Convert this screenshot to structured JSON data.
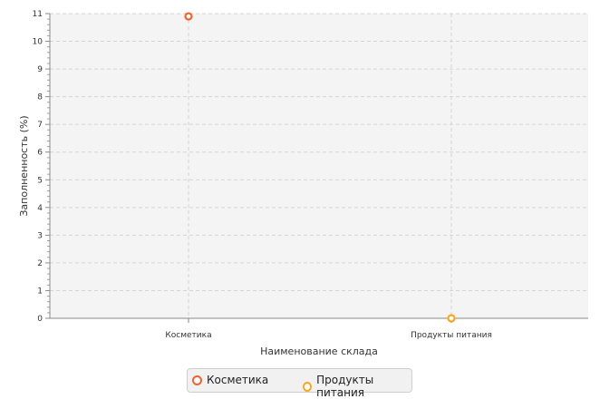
{
  "chart_data": {
    "type": "scatter",
    "title": "",
    "xlabel": "Наименование склада",
    "ylabel": "Заполненность (%)",
    "categories": [
      "Косметика",
      "Продукты питания"
    ],
    "ylim": [
      0,
      11
    ],
    "yticks": [
      0,
      1,
      2,
      3,
      4,
      5,
      6,
      7,
      8,
      9,
      10,
      11
    ],
    "grid": true,
    "legend_position": "bottom",
    "series": [
      {
        "name": "Косметика",
        "color": "#f3622d",
        "points": [
          {
            "x": "Косметика",
            "y": 10.9
          }
        ]
      },
      {
        "name": "Продукты питания",
        "color": "#fba71b",
        "points": [
          {
            "x": "Продукты питания",
            "y": 0
          }
        ]
      }
    ]
  },
  "legend": {
    "items": [
      {
        "label": "Косметика",
        "color": "#f3622d"
      },
      {
        "label": "Продукты питания",
        "color": "#fba71b"
      }
    ]
  }
}
